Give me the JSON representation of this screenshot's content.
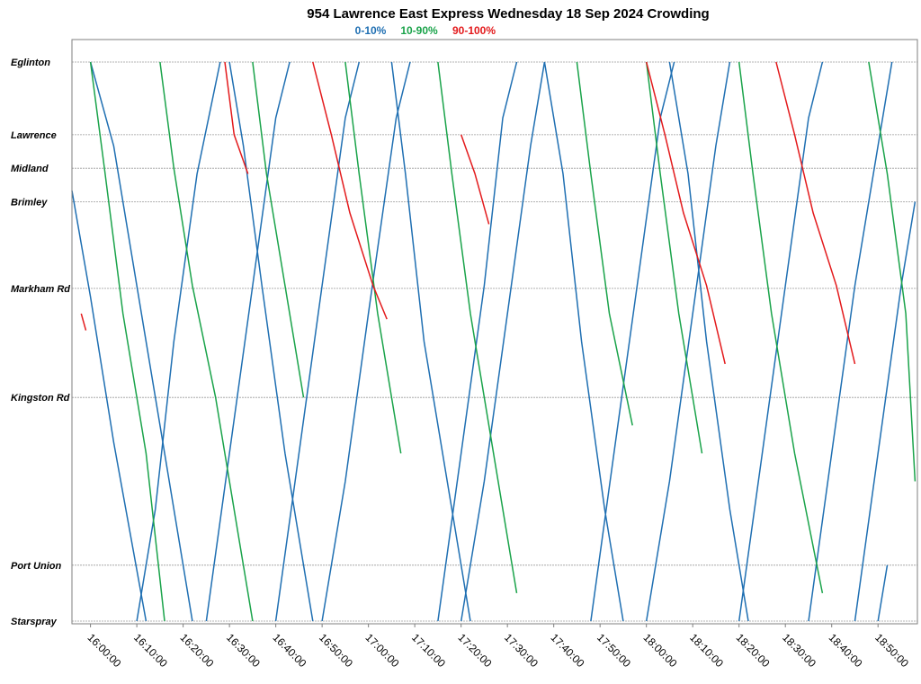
{
  "chart_data": {
    "type": "line",
    "title": "954 Lawrence East Express Wednesday 18 Sep 2024 Crowding",
    "legend": [
      {
        "label": "0-10%",
        "color": "#1f6fb2"
      },
      {
        "label": "10-90%",
        "color": "#1aa34a"
      },
      {
        "label": "90-100%",
        "color": "#e31a1c"
      }
    ],
    "legend_placement": "top-center",
    "xlim": [
      "15:56:00",
      "18:58:30"
    ],
    "x_ticks": [
      "16:00:00",
      "16:10:00",
      "16:20:00",
      "16:30:00",
      "16:40:00",
      "16:50:00",
      "17:00:00",
      "17:10:00",
      "17:20:00",
      "17:30:00",
      "17:40:00",
      "17:50:00",
      "18:00:00",
      "18:10:00",
      "18:20:00",
      "18:30:00",
      "18:40:00",
      "18:50:00"
    ],
    "stops": [
      {
        "name": "Eglinton",
        "pos": 0.0
      },
      {
        "name": "Lawrence",
        "pos": 1.3
      },
      {
        "name": "Midland",
        "pos": 1.9
      },
      {
        "name": "Brimley",
        "pos": 2.5
      },
      {
        "name": "Markham Rd",
        "pos": 4.05
      },
      {
        "name": "Kingston Rd",
        "pos": 6.0
      },
      {
        "name": "Port Union",
        "pos": 9.0
      },
      {
        "name": "Starspray",
        "pos": 10.0
      }
    ],
    "grid": "horizontal at stops",
    "series": [
      {
        "name": "0-10%",
        "segments": [
          [
            [
              "15:56:00",
              2.3
            ],
            [
              "16:00:00",
              4.2
            ],
            [
              "16:05:00",
              6.8
            ],
            [
              "16:12:00",
              10.0
            ]
          ],
          [
            [
              "16:00:00",
              0.0
            ],
            [
              "16:05:00",
              1.5
            ],
            [
              "16:10:00",
              4.0
            ],
            [
              "16:15:00",
              6.5
            ],
            [
              "16:22:00",
              10.0
            ]
          ],
          [
            [
              "16:10:00",
              10.0
            ],
            [
              "16:14:00",
              8.0
            ],
            [
              "16:18:00",
              5.0
            ],
            [
              "16:23:00",
              2.0
            ],
            [
              "16:28:00",
              0.0
            ]
          ],
          [
            [
              "16:25:00",
              10.0
            ],
            [
              "16:30:00",
              7.0
            ],
            [
              "16:35:00",
              4.0
            ],
            [
              "16:40:00",
              1.0
            ],
            [
              "16:43:00",
              0.0
            ]
          ],
          [
            [
              "16:30:00",
              0.0
            ],
            [
              "16:33:00",
              1.5
            ],
            [
              "16:37:00",
              4.0
            ],
            [
              "16:42:00",
              7.0
            ],
            [
              "16:48:00",
              10.0
            ]
          ],
          [
            [
              "16:40:00",
              10.0
            ],
            [
              "16:45:00",
              7.0
            ],
            [
              "16:50:00",
              4.0
            ],
            [
              "16:55:00",
              1.0
            ],
            [
              "16:58:00",
              0.0
            ]
          ],
          [
            [
              "16:50:00",
              10.0
            ],
            [
              "16:55:00",
              7.5
            ],
            [
              "17:00:00",
              4.5
            ],
            [
              "17:06:00",
              1.0
            ],
            [
              "17:09:00",
              0.0
            ]
          ],
          [
            [
              "17:05:00",
              0.0
            ],
            [
              "17:08:00",
              2.0
            ],
            [
              "17:12:00",
              5.0
            ],
            [
              "17:18:00",
              8.0
            ],
            [
              "17:22:00",
              10.0
            ]
          ],
          [
            [
              "17:15:00",
              10.0
            ],
            [
              "17:20:00",
              7.0
            ],
            [
              "17:25:00",
              4.0
            ],
            [
              "17:29:00",
              1.0
            ],
            [
              "17:32:00",
              0.0
            ]
          ],
          [
            [
              "17:20:00",
              10.0
            ],
            [
              "17:25:00",
              7.5
            ],
            [
              "17:30:00",
              4.5
            ],
            [
              "17:35:00",
              1.5
            ],
            [
              "17:38:00",
              0.0
            ]
          ],
          [
            [
              "17:38:00",
              0.0
            ],
            [
              "17:42:00",
              2.0
            ],
            [
              "17:46:00",
              5.0
            ],
            [
              "17:51:00",
              8.0
            ],
            [
              "17:55:00",
              10.0
            ]
          ],
          [
            [
              "17:48:00",
              10.0
            ],
            [
              "17:53:00",
              7.0
            ],
            [
              "17:58:00",
              4.0
            ],
            [
              "18:03:00",
              1.0
            ],
            [
              "18:06:00",
              0.0
            ]
          ],
          [
            [
              "18:00:00",
              10.0
            ],
            [
              "18:05:00",
              7.5
            ],
            [
              "18:10:00",
              4.5
            ],
            [
              "18:15:00",
              1.5
            ],
            [
              "18:18:00",
              0.0
            ]
          ],
          [
            [
              "18:05:00",
              0.0
            ],
            [
              "18:09:00",
              2.0
            ],
            [
              "18:13:00",
              5.0
            ],
            [
              "18:18:00",
              8.0
            ],
            [
              "18:22:00",
              10.0
            ]
          ],
          [
            [
              "18:20:00",
              10.0
            ],
            [
              "18:25:00",
              7.0
            ],
            [
              "18:30:00",
              4.0
            ],
            [
              "18:35:00",
              1.0
            ],
            [
              "18:38:00",
              0.0
            ]
          ],
          [
            [
              "18:35:00",
              10.0
            ],
            [
              "18:40:00",
              7.0
            ],
            [
              "18:45:00",
              4.0
            ],
            [
              "18:50:00",
              1.5
            ],
            [
              "18:53:00",
              0.0
            ]
          ],
          [
            [
              "18:45:00",
              10.0
            ],
            [
              "18:50:00",
              7.0
            ],
            [
              "18:55:00",
              4.0
            ],
            [
              "18:58:00",
              2.5
            ]
          ],
          [
            [
              "18:50:00",
              10.0
            ],
            [
              "18:52:00",
              9.0
            ]
          ]
        ]
      },
      {
        "name": "10-90%",
        "segments": [
          [
            [
              "16:00:00",
              0.0
            ],
            [
              "16:03:00",
              1.9
            ],
            [
              "16:07:00",
              4.5
            ],
            [
              "16:12:00",
              7.0
            ],
            [
              "16:16:00",
              10.0
            ]
          ],
          [
            [
              "16:15:00",
              0.0
            ],
            [
              "16:18:00",
              1.9
            ],
            [
              "16:22:00",
              4.0
            ],
            [
              "16:27:00",
              6.0
            ],
            [
              "16:32:00",
              8.5
            ],
            [
              "16:35:00",
              10.0
            ]
          ],
          [
            [
              "16:35:00",
              0.0
            ],
            [
              "16:38:00",
              2.0
            ],
            [
              "16:42:00",
              4.0
            ],
            [
              "16:46:00",
              6.0
            ]
          ],
          [
            [
              "16:55:00",
              0.0
            ],
            [
              "16:58:00",
              2.0
            ],
            [
              "17:02:00",
              4.5
            ],
            [
              "17:07:00",
              7.0
            ]
          ],
          [
            [
              "17:15:00",
              0.0
            ],
            [
              "17:18:00",
              2.0
            ],
            [
              "17:22:00",
              4.5
            ],
            [
              "17:27:00",
              7.0
            ],
            [
              "17:32:00",
              9.5
            ]
          ],
          [
            [
              "17:45:00",
              0.0
            ],
            [
              "17:48:00",
              2.0
            ],
            [
              "17:52:00",
              4.5
            ],
            [
              "17:57:00",
              6.5
            ]
          ],
          [
            [
              "18:00:00",
              0.0
            ],
            [
              "18:03:00",
              2.0
            ],
            [
              "18:07:00",
              4.5
            ],
            [
              "18:12:00",
              7.0
            ]
          ],
          [
            [
              "18:20:00",
              0.0
            ],
            [
              "18:23:00",
              2.0
            ],
            [
              "18:27:00",
              4.5
            ],
            [
              "18:32:00",
              7.0
            ],
            [
              "18:38:00",
              9.5
            ]
          ],
          [
            [
              "18:48:00",
              0.0
            ],
            [
              "18:52:00",
              2.0
            ],
            [
              "18:56:00",
              4.5
            ],
            [
              "18:58:00",
              7.5
            ]
          ]
        ]
      },
      {
        "name": "90-100%",
        "segments": [
          [
            [
              "16:29:00",
              0.0
            ],
            [
              "16:31:00",
              1.3
            ],
            [
              "16:34:00",
              2.0
            ]
          ],
          [
            [
              "16:48:00",
              0.0
            ],
            [
              "16:52:00",
              1.3
            ],
            [
              "16:56:00",
              2.7
            ],
            [
              "17:01:00",
              4.0
            ],
            [
              "17:04:00",
              4.6
            ]
          ],
          [
            [
              "17:20:00",
              1.3
            ],
            [
              "17:23:00",
              2.0
            ],
            [
              "17:26:00",
              2.9
            ]
          ],
          [
            [
              "18:00:00",
              0.0
            ],
            [
              "18:04:00",
              1.3
            ],
            [
              "18:08:00",
              2.7
            ],
            [
              "18:13:00",
              4.0
            ],
            [
              "18:17:00",
              5.4
            ]
          ],
          [
            [
              "18:28:00",
              0.0
            ],
            [
              "18:32:00",
              1.3
            ],
            [
              "18:36:00",
              2.7
            ],
            [
              "18:41:00",
              4.0
            ],
            [
              "18:45:00",
              5.4
            ]
          ],
          [
            [
              "15:58:00",
              4.5
            ],
            [
              "15:59:00",
              4.8
            ]
          ]
        ]
      }
    ]
  }
}
